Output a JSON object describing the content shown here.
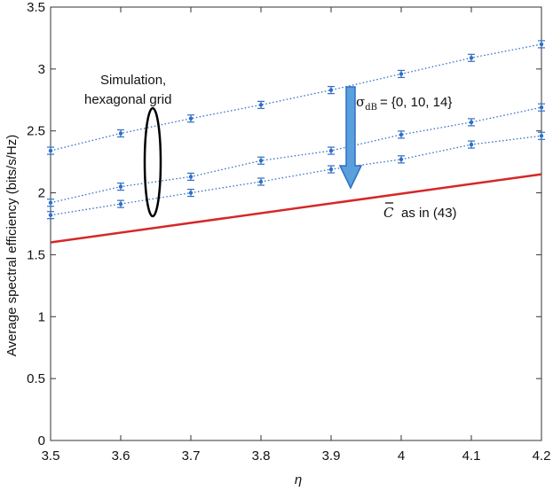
{
  "chart_data": {
    "type": "line",
    "xlabel": "η",
    "ylabel": "Average spectral efficiency (bits/s/Hz)",
    "xlim": [
      3.5,
      4.2
    ],
    "ylim": [
      0,
      3.5
    ],
    "xticks": [
      "3.5",
      "3.6",
      "3.7",
      "3.8",
      "3.9",
      "4",
      "4.1",
      "4.2"
    ],
    "yticks": [
      "0",
      "0.5",
      "1",
      "1.5",
      "2",
      "2.5",
      "3",
      "3.5"
    ],
    "grid": false,
    "series": [
      {
        "style": "dotted-with-errorbars",
        "color": "#2f6fc4",
        "x": [
          3.5,
          3.6,
          3.7,
          3.8,
          3.9,
          4.0,
          4.1,
          4.2
        ],
        "y": [
          2.34,
          2.48,
          2.6,
          2.71,
          2.83,
          2.96,
          3.09,
          3.2
        ]
      },
      {
        "style": "dotted-with-errorbars",
        "color": "#2f6fc4",
        "x": [
          3.5,
          3.6,
          3.7,
          3.8,
          3.9,
          4.0,
          4.1,
          4.2
        ],
        "y": [
          1.92,
          2.05,
          2.13,
          2.26,
          2.34,
          2.47,
          2.57,
          2.69
        ]
      },
      {
        "style": "dotted-with-errorbars",
        "color": "#2f6fc4",
        "x": [
          3.5,
          3.6,
          3.7,
          3.8,
          3.9,
          4.0,
          4.1,
          4.2
        ],
        "y": [
          1.82,
          1.91,
          2.0,
          2.09,
          2.19,
          2.27,
          2.39,
          2.46
        ]
      },
      {
        "style": "solid",
        "color": "#d62728",
        "x": [
          3.5,
          4.2
        ],
        "y": [
          1.6,
          2.15
        ]
      }
    ],
    "annotations": {
      "simulation_line1": "Simulation,",
      "simulation_line2": "hexagonal grid",
      "sigma_prefix": "σ",
      "sigma_sub": "dB",
      "sigma_values": "= {0, 10, 14}",
      "cbar_symbol": "C",
      "cbar_text": "as in (43)"
    }
  }
}
